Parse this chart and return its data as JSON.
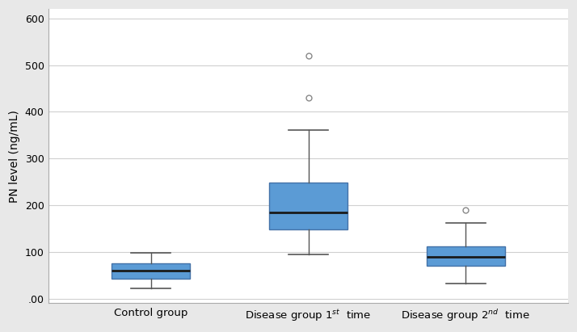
{
  "groups": [
    "Control group",
    "Disease group 1$^{st}$  time",
    "Disease group 2$^{nd}$  time"
  ],
  "boxes": [
    {
      "whislo": 22,
      "q1": 43,
      "med": 60,
      "q3": 75,
      "whishi": 98,
      "fliers": []
    },
    {
      "whislo": 95,
      "q1": 148,
      "med": 185,
      "q3": 248,
      "whishi": 360,
      "fliers": [
        430,
        520
      ]
    },
    {
      "whislo": 32,
      "q1": 70,
      "med": 90,
      "q3": 112,
      "whishi": 162,
      "fliers": [
        190
      ]
    }
  ],
  "ylim": [
    -10,
    620
  ],
  "yticks": [
    0,
    100,
    200,
    300,
    400,
    500,
    600
  ],
  "ytick_labels": [
    ".00",
    "100",
    "200",
    "300",
    "400",
    "500",
    "600"
  ],
  "ylabel": "PN level (ng/mL)",
  "box_facecolor": "#5b9bd5",
  "box_edgecolor": "#4472a8",
  "median_color": "#1a1a1a",
  "whisker_color": "#555555",
  "cap_color": "#555555",
  "flier_edgecolor": "#888888",
  "background_color": "#ffffff",
  "outer_background": "#e8e8e8",
  "grid_color": "#d0d0d0",
  "box_width": 0.5,
  "positions": [
    1,
    2,
    3
  ],
  "xlim": [
    0.35,
    3.65
  ],
  "figsize": [
    7.14,
    4.11
  ],
  "dpi": 100,
  "tick_fontsize": 9,
  "label_fontsize": 10
}
